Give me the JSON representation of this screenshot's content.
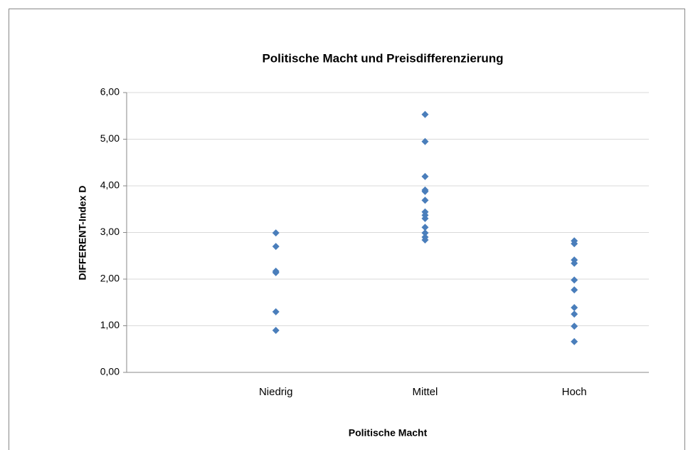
{
  "chart_data": {
    "type": "scatter",
    "title": "Politische Macht und Preisdifferenzierung",
    "x_label": "Politische Macht",
    "y_label": "DIFFERENT-Index D",
    "categories": [
      "Niedrig",
      "Mittel",
      "Hoch"
    ],
    "values": [
      [
        2.99,
        2.7,
        2.17,
        2.14,
        1.3,
        0.9
      ],
      [
        5.53,
        4.95,
        4.2,
        3.91,
        3.88,
        3.69,
        3.44,
        3.37,
        3.3,
        3.11,
        2.99,
        2.9,
        2.84
      ],
      [
        2.82,
        2.76,
        2.41,
        2.34,
        1.98,
        1.77,
        1.39,
        1.25,
        0.99,
        0.66
      ]
    ],
    "color": "#4a7ebb",
    "ylim": [
      0,
      6
    ],
    "yticks": [
      {
        "value": 0,
        "label": "0,00"
      },
      {
        "value": 1,
        "label": "1,00"
      },
      {
        "value": 2,
        "label": "2,00"
      },
      {
        "value": 3,
        "label": "3,00"
      },
      {
        "value": 4,
        "label": "4,00"
      },
      {
        "value": 5,
        "label": "5,00"
      },
      {
        "value": 6,
        "label": "6,00"
      }
    ],
    "grid": true
  }
}
